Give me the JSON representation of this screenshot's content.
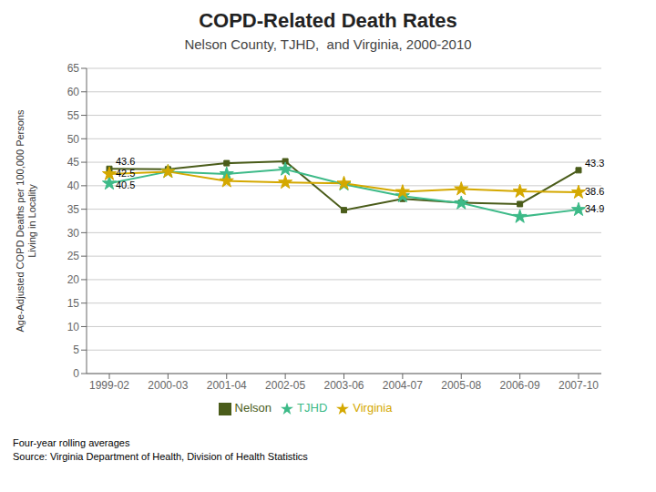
{
  "chart_data": {
    "type": "line",
    "title": "COPD-Related Death Rates",
    "subtitle": "Nelson County, TJHD,  and Virginia, 2000-2010",
    "y_label": "Age-Adjusted COPD Deaths per 100,000 Persons\nLiving in Locality",
    "categories": [
      "1999-02",
      "2000-03",
      "2001-04",
      "2002-05",
      "2003-06",
      "2004-07",
      "2005-08",
      "2006-09",
      "2007-10"
    ],
    "series": [
      {
        "name": "Nelson",
        "color": "#4a5c1a",
        "marker": "square",
        "values": [
          43.6,
          43.5,
          44.8,
          45.2,
          34.8,
          37.2,
          36.4,
          36.1,
          43.3
        ]
      },
      {
        "name": "TJHD",
        "color": "#3dba88",
        "marker": "star",
        "values": [
          40.5,
          43.0,
          42.5,
          43.5,
          40.3,
          37.8,
          36.3,
          33.4,
          34.9
        ]
      },
      {
        "name": "Virginia",
        "color": "#d4a800",
        "marker": "star",
        "values": [
          42.5,
          43.0,
          41.0,
          40.7,
          40.5,
          38.7,
          39.3,
          38.8,
          38.6
        ]
      }
    ],
    "ylim": [
      0,
      65
    ],
    "yticks": [
      0,
      5,
      10,
      15,
      20,
      25,
      30,
      35,
      40,
      45,
      50,
      55,
      60,
      65
    ],
    "grid": true,
    "legend": "bottom",
    "annotations": [
      {
        "text": "43.6",
        "x": "1999-02",
        "y": 43.6
      },
      {
        "text": "42.5",
        "x": "1999-02",
        "y": 42.5
      },
      {
        "text": "40.5",
        "x": "1999-02",
        "y": 40.5
      },
      {
        "text": "43.3",
        "x": "2007-10",
        "y": 43.3
      },
      {
        "text": "38.6",
        "x": "2007-10",
        "y": 38.6
      },
      {
        "text": "34.9",
        "x": "2007-10",
        "y": 34.9
      }
    ],
    "footnotes": [
      "Four-year rolling averages",
      "Source: Virginia Department of Health, Division of Health Statistics"
    ]
  }
}
